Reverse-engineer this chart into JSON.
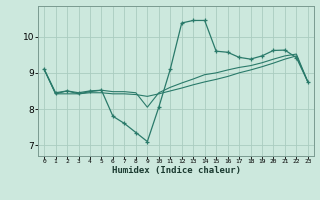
{
  "xlabel": "Humidex (Indice chaleur)",
  "bg_color": "#cce8dd",
  "grid_color": "#aaccc0",
  "line_color": "#2a7a6a",
  "spine_color": "#7a9a90",
  "xlim": [
    -0.5,
    23.5
  ],
  "ylim": [
    6.7,
    10.85
  ],
  "yticks": [
    7,
    8,
    9,
    10
  ],
  "xticks": [
    0,
    1,
    2,
    3,
    4,
    5,
    6,
    7,
    8,
    9,
    10,
    11,
    12,
    13,
    14,
    15,
    16,
    17,
    18,
    19,
    20,
    21,
    22,
    23
  ],
  "line1_x": [
    0,
    1,
    2,
    3,
    4,
    5,
    6,
    7,
    8,
    9,
    10,
    11,
    12,
    13,
    14,
    15,
    16,
    17,
    18,
    19,
    20,
    21,
    22,
    23
  ],
  "line1_y": [
    9.1,
    8.45,
    8.5,
    8.45,
    8.5,
    8.52,
    7.8,
    7.6,
    7.35,
    7.1,
    8.05,
    9.1,
    10.38,
    10.45,
    10.45,
    9.6,
    9.57,
    9.43,
    9.38,
    9.47,
    9.62,
    9.63,
    9.42,
    8.75
  ],
  "line2_x": [
    0,
    1,
    2,
    3,
    4,
    5,
    6,
    7,
    8,
    9,
    10,
    11,
    12,
    13,
    14,
    15,
    16,
    17,
    18,
    19,
    20,
    21,
    22,
    23
  ],
  "line2_y": [
    9.1,
    8.42,
    8.42,
    8.42,
    8.45,
    8.45,
    8.42,
    8.42,
    8.4,
    8.35,
    8.42,
    8.5,
    8.58,
    8.67,
    8.75,
    8.82,
    8.9,
    9.0,
    9.08,
    9.17,
    9.27,
    9.38,
    9.47,
    8.75
  ],
  "line3_x": [
    0,
    1,
    2,
    3,
    4,
    5,
    6,
    7,
    8,
    9,
    10,
    11,
    12,
    13,
    14,
    15,
    16,
    17,
    18,
    19,
    20,
    21,
    22,
    23
  ],
  "line3_y": [
    9.1,
    8.42,
    8.5,
    8.42,
    8.48,
    8.52,
    8.48,
    8.48,
    8.45,
    8.05,
    8.45,
    8.6,
    8.72,
    8.83,
    8.95,
    9.0,
    9.08,
    9.15,
    9.2,
    9.28,
    9.38,
    9.47,
    9.52,
    8.75
  ]
}
